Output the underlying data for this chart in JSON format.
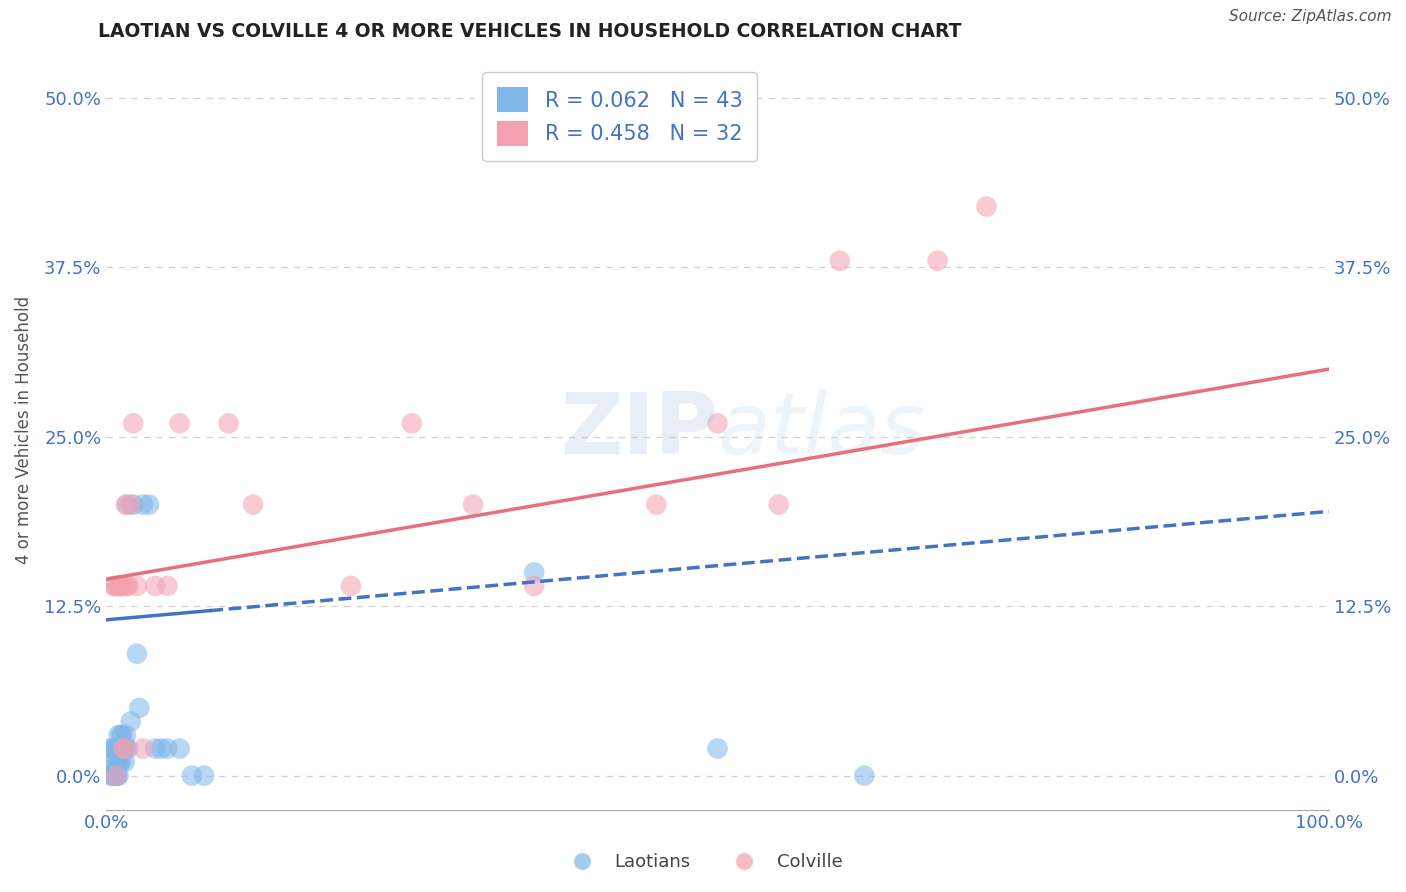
{
  "title": "LAOTIAN VS COLVILLE 4 OR MORE VEHICLES IN HOUSEHOLD CORRELATION CHART",
  "source": "Source: ZipAtlas.com",
  "ylabel_label": "4 or more Vehicles in Household",
  "xlim": [
    0.0,
    1.0
  ],
  "ylim": [
    -0.025,
    0.535
  ],
  "ytick_vals": [
    0.0,
    0.125,
    0.25,
    0.375,
    0.5
  ],
  "ytick_labels": [
    "0.0%",
    "12.5%",
    "25.0%",
    "37.5%",
    "50.0%"
  ],
  "xtick_vals": [
    0.0,
    1.0
  ],
  "xtick_labels": [
    "0.0%",
    "100.0%"
  ],
  "laotian_R": 0.062,
  "laotian_N": 43,
  "colville_R": 0.458,
  "colville_N": 32,
  "laotian_color": "#7EB6E8",
  "colville_color": "#F4A0B0",
  "laotian_line_color": "#4472C4",
  "colville_line_color": "#E8707A",
  "background_color": "#FFFFFF",
  "grid_color": "#D0D0D0",
  "title_color": "#222222",
  "label_color": "#555555",
  "tick_color": "#4472C4",
  "laotian_x": [
    0.003,
    0.004,
    0.005,
    0.005,
    0.006,
    0.006,
    0.007,
    0.007,
    0.008,
    0.008,
    0.009,
    0.009,
    0.01,
    0.01,
    0.01,
    0.011,
    0.011,
    0.012,
    0.012,
    0.013,
    0.013,
    0.014,
    0.015,
    0.015,
    0.016,
    0.016,
    0.017,
    0.018,
    0.02,
    0.022,
    0.025,
    0.027,
    0.03,
    0.035,
    0.04,
    0.045,
    0.05,
    0.06,
    0.07,
    0.08,
    0.35,
    0.5,
    0.62
  ],
  "laotian_y": [
    0.02,
    0.0,
    0.0,
    0.02,
    0.0,
    0.01,
    0.01,
    0.02,
    0.0,
    0.02,
    0.0,
    0.01,
    0.0,
    0.01,
    0.03,
    0.01,
    0.02,
    0.01,
    0.03,
    0.02,
    0.03,
    0.02,
    0.01,
    0.02,
    0.02,
    0.03,
    0.2,
    0.02,
    0.04,
    0.2,
    0.09,
    0.05,
    0.2,
    0.2,
    0.02,
    0.02,
    0.02,
    0.02,
    0.0,
    0.0,
    0.15,
    0.02,
    0.0
  ],
  "colville_x": [
    0.006,
    0.007,
    0.008,
    0.009,
    0.01,
    0.011,
    0.012,
    0.013,
    0.014,
    0.015,
    0.016,
    0.017,
    0.018,
    0.02,
    0.022,
    0.025,
    0.03,
    0.04,
    0.05,
    0.06,
    0.1,
    0.12,
    0.2,
    0.25,
    0.3,
    0.35,
    0.45,
    0.5,
    0.55,
    0.6,
    0.68,
    0.72
  ],
  "colville_y": [
    0.14,
    0.14,
    0.0,
    0.14,
    0.14,
    0.14,
    0.14,
    0.14,
    0.02,
    0.02,
    0.2,
    0.14,
    0.14,
    0.2,
    0.26,
    0.14,
    0.02,
    0.14,
    0.14,
    0.26,
    0.26,
    0.2,
    0.14,
    0.26,
    0.2,
    0.14,
    0.2,
    0.26,
    0.2,
    0.38,
    0.38,
    0.42
  ]
}
